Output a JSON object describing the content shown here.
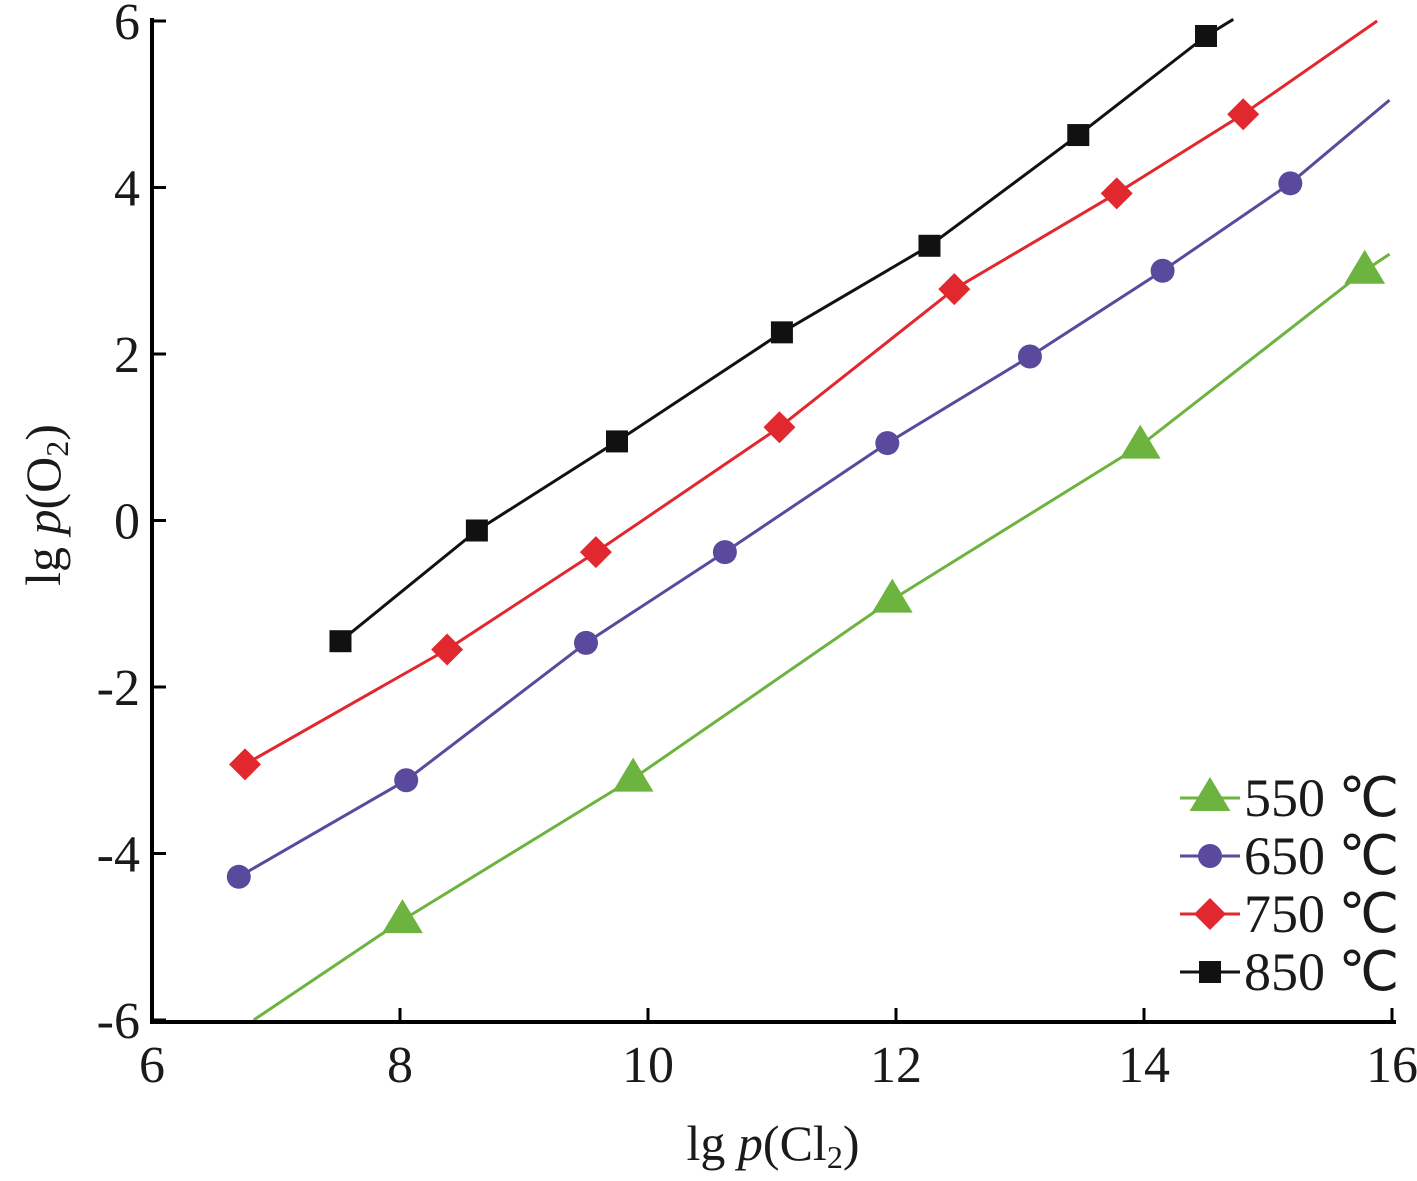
{
  "chart_data": {
    "type": "line",
    "xlabel": {
      "prefix": "lg ",
      "italic": "p",
      "open": "(",
      "species": "Cl",
      "sub": "2",
      "close": ")"
    },
    "ylabel": {
      "prefix": "lg ",
      "italic": "p",
      "open": "(",
      "species": "O",
      "sub": "2",
      "close": ")"
    },
    "xlim": [
      6,
      16
    ],
    "ylim": [
      -6,
      6
    ],
    "xticks": [
      6,
      8,
      10,
      12,
      14,
      16
    ],
    "yticks": [
      -6,
      -4,
      -2,
      0,
      2,
      4,
      6
    ],
    "grid": false,
    "legend_position": "bottom-right",
    "series": [
      {
        "name": "550 ℃",
        "color": "#6db33f",
        "marker": "triangle",
        "points": [
          [
            8.02,
            -4.8
          ],
          [
            9.88,
            -3.1
          ],
          [
            11.97,
            -0.95
          ],
          [
            13.97,
            0.9
          ],
          [
            15.78,
            3.0
          ]
        ],
        "line_ext": [
          [
            6.82,
            -6.0
          ],
          [
            15.98,
            3.2
          ]
        ]
      },
      {
        "name": "650 ℃",
        "color": "#5a4a9e",
        "marker": "circle",
        "points": [
          [
            6.7,
            -4.28
          ],
          [
            8.05,
            -3.12
          ],
          [
            9.5,
            -1.47
          ],
          [
            10.62,
            -0.38
          ],
          [
            11.93,
            0.93
          ],
          [
            13.08,
            1.97
          ],
          [
            14.15,
            3.0
          ],
          [
            15.18,
            4.05
          ]
        ],
        "line_ext": [
          [
            6.7,
            -4.28
          ],
          [
            15.98,
            5.05
          ]
        ]
      },
      {
        "name": "750 ℃",
        "color": "#e0282e",
        "marker": "diamond",
        "points": [
          [
            6.75,
            -2.93
          ],
          [
            8.38,
            -1.55
          ],
          [
            9.58,
            -0.38
          ],
          [
            11.06,
            1.12
          ],
          [
            12.47,
            2.78
          ],
          [
            13.78,
            3.93
          ],
          [
            14.8,
            4.88
          ]
        ],
        "line_ext": [
          [
            6.75,
            -2.93
          ],
          [
            15.88,
            6.0
          ]
        ]
      },
      {
        "name": "850 ℃",
        "color": "#111111",
        "marker": "square",
        "points": [
          [
            7.52,
            -1.45
          ],
          [
            8.62,
            -0.12
          ],
          [
            9.75,
            0.95
          ],
          [
            11.08,
            2.26
          ],
          [
            12.27,
            3.3
          ],
          [
            13.47,
            4.63
          ],
          [
            14.5,
            5.82
          ]
        ],
        "line_ext": [
          [
            7.52,
            -1.45
          ],
          [
            14.72,
            6.02
          ]
        ]
      }
    ]
  }
}
